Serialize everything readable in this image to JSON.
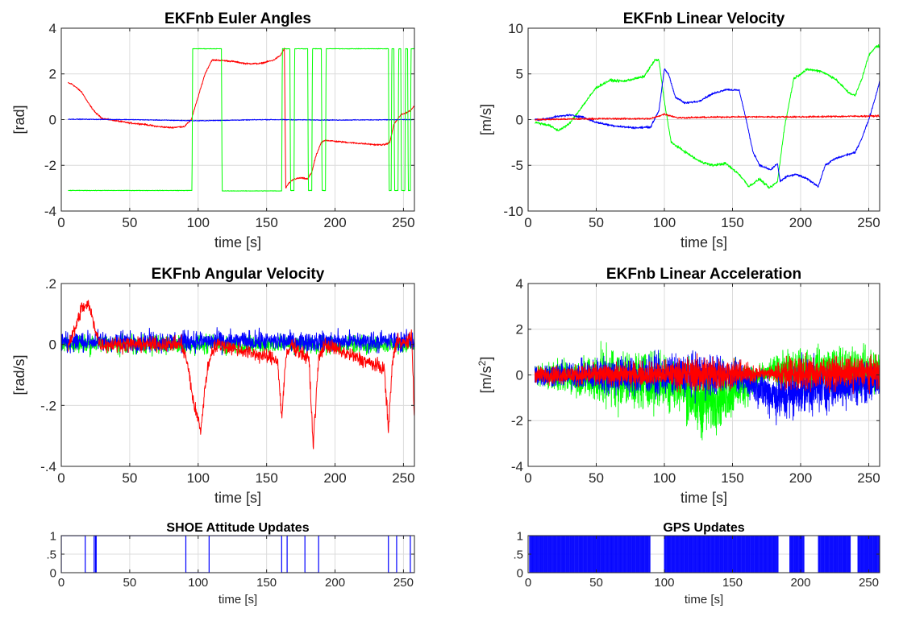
{
  "figure": {
    "background": "#ffffff"
  },
  "colors": {
    "red": "#ff0000",
    "green": "#00ff00",
    "blue": "#0000ff",
    "grid": "#dcdcdc",
    "axis": "#262626"
  },
  "chart_data": [
    {
      "id": "euler",
      "type": "line",
      "title": "EKFnb Euler Angles",
      "xlabel": "time [s]",
      "ylabel": "[rad]",
      "xlim": [
        0,
        258
      ],
      "ylim": [
        -4,
        4
      ],
      "xticks": [
        0,
        50,
        100,
        150,
        200,
        250
      ],
      "yticks": [
        -4,
        -2,
        0,
        2,
        4
      ],
      "grid": true,
      "series": [
        {
          "color": "#ff0000",
          "noise": 0.03,
          "x": [
            5,
            8,
            15,
            20,
            25,
            30,
            40,
            50,
            60,
            70,
            80,
            90,
            95,
            100,
            105,
            110,
            115,
            125,
            135,
            145,
            155,
            160,
            163,
            164,
            166,
            170,
            175,
            180,
            183,
            186,
            190,
            193,
            200,
            210,
            220,
            230,
            236,
            240,
            243,
            248,
            252,
            255,
            258
          ],
          "y": [
            1.6,
            1.55,
            1.2,
            0.7,
            0.3,
            0.05,
            -0.05,
            -0.15,
            -0.2,
            -0.3,
            -0.35,
            -0.3,
            0.0,
            1.0,
            2.0,
            2.6,
            2.6,
            2.55,
            2.45,
            2.45,
            2.6,
            2.8,
            3.1,
            -3.0,
            -2.8,
            -2.6,
            -2.55,
            -2.6,
            -2.3,
            -1.6,
            -1.0,
            -0.9,
            -0.95,
            -1.0,
            -1.05,
            -1.1,
            -1.1,
            -1.0,
            -0.2,
            0.2,
            0.3,
            0.4,
            0.6
          ]
        },
        {
          "color": "#0000ff",
          "noise": 0.015,
          "x": [
            5,
            50,
            100,
            150,
            200,
            258
          ],
          "y": [
            0.02,
            0.0,
            -0.05,
            0.0,
            -0.02,
            0.0
          ]
        },
        {
          "color": "#00ff00",
          "noise": 0.01,
          "x": [
            5,
            95.5,
            96,
            117,
            117.5,
            161,
            161.5,
            167,
            167.5,
            170,
            170.5,
            180,
            180.5,
            183,
            183.5,
            190,
            190.5,
            193,
            193.5,
            239,
            239.5,
            241,
            241.5,
            243,
            243.5,
            246,
            246.5,
            248,
            248.5,
            251,
            251.5,
            253,
            253.5,
            255,
            255.5,
            258
          ],
          "y": [
            -3.1,
            -3.1,
            3.1,
            3.1,
            -3.12,
            -3.12,
            3.1,
            3.1,
            -3.1,
            -3.1,
            3.1,
            3.1,
            -3.1,
            -3.1,
            3.1,
            3.1,
            -3.1,
            -3.1,
            3.1,
            3.1,
            -3.1,
            -3.1,
            3.1,
            3.1,
            -3.1,
            -3.1,
            3.1,
            3.1,
            -3.1,
            -3.1,
            3.1,
            3.1,
            -3.1,
            -3.1,
            3.1,
            3.1
          ]
        }
      ]
    },
    {
      "id": "linvel",
      "type": "line",
      "title": "EKFnb Linear Velocity",
      "xlabel": "time [s]",
      "ylabel": "[m/s]",
      "xlim": [
        0,
        258
      ],
      "ylim": [
        -10,
        10
      ],
      "xticks": [
        0,
        50,
        100,
        150,
        200,
        250
      ],
      "yticks": [
        -10,
        -5,
        0,
        5,
        10
      ],
      "grid": true,
      "series": [
        {
          "color": "#00ff00",
          "noise": 0.12,
          "x": [
            5,
            15,
            22,
            30,
            40,
            50,
            60,
            70,
            85,
            93,
            96,
            100,
            105,
            115,
            125,
            135,
            145,
            155,
            162,
            170,
            177,
            183,
            188,
            195,
            205,
            215,
            225,
            235,
            240,
            245,
            250,
            255,
            258
          ],
          "y": [
            -0.3,
            -0.6,
            -1.2,
            -0.5,
            1.5,
            3.5,
            4.3,
            4.2,
            4.7,
            6.5,
            6.5,
            2.0,
            -2.5,
            -3.5,
            -4.5,
            -5.0,
            -4.8,
            -6.0,
            -7.3,
            -6.5,
            -7.5,
            -6.8,
            -1.0,
            4.5,
            5.5,
            5.3,
            4.5,
            3.0,
            2.6,
            4.5,
            7.0,
            8.0,
            8.0
          ]
        },
        {
          "color": "#0000ff",
          "noise": 0.1,
          "x": [
            5,
            10,
            20,
            30,
            40,
            50,
            60,
            70,
            80,
            90,
            96,
            100,
            103,
            108,
            115,
            125,
            135,
            145,
            155,
            160,
            165,
            170,
            178,
            183,
            185,
            190,
            197,
            205,
            213,
            218,
            225,
            235,
            240,
            245,
            250,
            255,
            258
          ],
          "y": [
            0.0,
            0.0,
            0.3,
            0.5,
            0.3,
            -0.3,
            -0.6,
            -0.8,
            -0.9,
            -0.8,
            1.0,
            5.5,
            5.0,
            2.5,
            1.8,
            2.0,
            2.8,
            3.3,
            3.2,
            0.0,
            -3.5,
            -5.0,
            -5.5,
            -4.8,
            -6.8,
            -6.2,
            -6.0,
            -6.5,
            -7.3,
            -5.0,
            -4.3,
            -3.8,
            -3.6,
            -2.0,
            0.0,
            2.5,
            4.2
          ]
        },
        {
          "color": "#ff0000",
          "noise": 0.08,
          "x": [
            5,
            50,
            90,
            100,
            110,
            150,
            200,
            258
          ],
          "y": [
            0.0,
            0.1,
            0.1,
            0.6,
            0.2,
            0.3,
            0.3,
            0.4
          ]
        }
      ]
    },
    {
      "id": "angvel",
      "type": "line",
      "title": "EKFnb Angular Velocity",
      "xlabel": "time [s]",
      "ylabel": "[rad/s]",
      "xlim": [
        0,
        258
      ],
      "ylim": [
        -0.4,
        0.2
      ],
      "xticks": [
        0,
        50,
        100,
        150,
        200,
        250
      ],
      "yticks": [
        -0.4,
        -0.2,
        0,
        0.2
      ],
      "grid": true,
      "series": [
        {
          "color": "#00ff00",
          "noise": 0.025,
          "x": [
            0,
            258
          ],
          "y": [
            0.0,
            0.0
          ]
        },
        {
          "color": "#0000ff",
          "noise": 0.028,
          "x": [
            0,
            258
          ],
          "y": [
            0.01,
            0.01
          ]
        },
        {
          "color": "#ff0000",
          "noise": 0.02,
          "x": [
            5,
            10,
            15,
            20,
            25,
            28,
            35,
            88,
            92,
            97,
            102,
            106,
            110,
            115,
            158,
            161,
            164,
            168,
            181,
            184,
            188,
            192,
            236,
            239,
            242,
            246,
            252,
            256,
            258
          ],
          "y": [
            0.0,
            0.05,
            0.12,
            0.13,
            0.05,
            0.0,
            0.0,
            0.0,
            -0.06,
            -0.2,
            -0.28,
            -0.1,
            -0.02,
            0.0,
            -0.05,
            -0.24,
            -0.05,
            0.0,
            -0.05,
            -0.33,
            -0.05,
            0.0,
            -0.08,
            -0.28,
            -0.05,
            0.02,
            0.0,
            0.03,
            -0.24
          ]
        }
      ]
    },
    {
      "id": "linacc",
      "type": "line",
      "title": "EKFnb Linear Acceleration",
      "xlabel": "time [s]",
      "ylabel": "[m/s",
      "ylabel_sup": "2",
      "ylabel_end": "]",
      "xlim": [
        0,
        258
      ],
      "ylim": [
        -4,
        4
      ],
      "xticks": [
        0,
        50,
        100,
        150,
        200,
        250
      ],
      "yticks": [
        -4,
        -2,
        0,
        2,
        4
      ],
      "grid": true,
      "series": [
        {
          "color": "#00ff00",
          "noise_env": [
            [
              5,
              0.4
            ],
            [
              40,
              0.7
            ],
            [
              55,
              1.1
            ],
            [
              100,
              1.0
            ],
            [
              130,
              1.3
            ],
            [
              160,
              0.8
            ],
            [
              175,
              0.3
            ],
            [
              190,
              0.7
            ],
            [
              230,
              0.9
            ],
            [
              258,
              0.8
            ]
          ],
          "x": [
            5,
            110,
            125,
            140,
            155,
            180,
            258
          ],
          "y": [
            0.0,
            -0.3,
            -1.2,
            -1.0,
            -0.5,
            0.2,
            0.2
          ]
        },
        {
          "color": "#0000ff",
          "noise_env": [
            [
              5,
              0.4
            ],
            [
              40,
              0.5
            ],
            [
              60,
              0.7
            ],
            [
              100,
              0.7
            ],
            [
              130,
              0.8
            ],
            [
              160,
              0.5
            ],
            [
              190,
              1.0
            ],
            [
              230,
              0.8
            ],
            [
              258,
              0.6
            ]
          ],
          "x": [
            5,
            150,
            185,
            200,
            258
          ],
          "y": [
            0.0,
            0.0,
            -1.0,
            -0.6,
            -0.3
          ]
        },
        {
          "color": "#ff0000",
          "noise_env": [
            [
              5,
              0.3
            ],
            [
              40,
              0.35
            ],
            [
              100,
              0.45
            ],
            [
              130,
              0.7
            ],
            [
              150,
              0.5
            ],
            [
              175,
              0.2
            ],
            [
              190,
              0.6
            ],
            [
              258,
              0.55
            ]
          ],
          "x": [
            5,
            258
          ],
          "y": [
            0.0,
            0.1
          ]
        }
      ]
    },
    {
      "id": "shoe",
      "type": "step",
      "title": "SHOE Attitude Updates",
      "xlabel": "time [s]",
      "xlim": [
        0,
        258
      ],
      "ylim": [
        0,
        1
      ],
      "xticks": [
        0,
        50,
        100,
        150,
        200,
        250
      ],
      "yticks": [
        0,
        0.5,
        1
      ],
      "grid": true,
      "series": [
        {
          "color": "#0000ff",
          "on_intervals": [
            [
              0,
              17.5
            ],
            [
              24,
              25
            ],
            [
              25.5,
              91
            ],
            [
              108,
              161
            ],
            [
              165,
              178
            ],
            [
              188,
              239
            ],
            [
              245,
              255
            ]
          ]
        }
      ]
    },
    {
      "id": "gps",
      "type": "step",
      "title": "GPS Updates",
      "xlabel": "time [s]",
      "xlim": [
        0,
        258
      ],
      "ylim": [
        0,
        1
      ],
      "xticks": [
        0,
        50,
        100,
        150,
        200,
        250
      ],
      "yticks": [
        0,
        0.5,
        1
      ],
      "grid": true,
      "series": [
        {
          "color": "#0000ff",
          "pulse_period": 1.0,
          "active_intervals": [
            [
              1,
              90
            ],
            [
              100,
              184
            ],
            [
              192,
              203
            ],
            [
              213,
              237
            ],
            [
              242,
              258
            ]
          ]
        }
      ]
    }
  ]
}
